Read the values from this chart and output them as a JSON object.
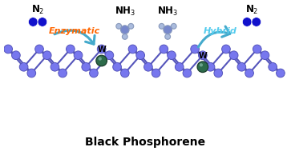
{
  "title": "Black Phosphorene",
  "title_fontsize": 10,
  "title_fontweight": "bold",
  "bg_color": "#ffffff",
  "enzymatic_label": "Enzymatic",
  "enzymatic_color": "#FF6600",
  "hybrid_label": "Hybrid",
  "hybrid_color": "#55CCEE",
  "P_color": "#7777EE",
  "P_edge_color": "#5555BB",
  "W_color": "#2D6B4A",
  "W_edge_color": "#1A3D2B",
  "W_highlight": "#88BBAA",
  "N2_blue": "#1111CC",
  "NH3_center_color": "#7788CC",
  "NH3_H_color": "#AABBDD",
  "NH3_outline": "#8899BB",
  "arrow_color": "#44AACC",
  "bond_color": "#5555BB"
}
